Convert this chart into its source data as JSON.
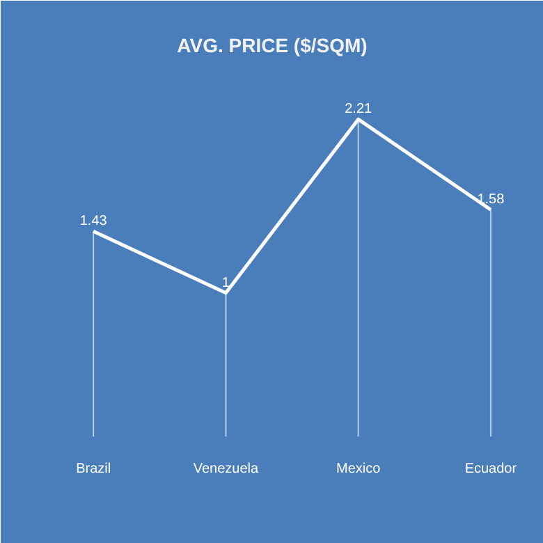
{
  "chart_data": {
    "type": "line",
    "title": "AVG. PRICE ($/SQM)",
    "categories": [
      "Brazil",
      "Venezuela",
      "Mexico",
      "Ecuador"
    ],
    "values": [
      1.43,
      1,
      2.21,
      1.58
    ],
    "color": "#ffffff",
    "data_labels": true,
    "grid": "x",
    "ylim": [
      0,
      2.6
    ],
    "tick_labels": "x"
  }
}
